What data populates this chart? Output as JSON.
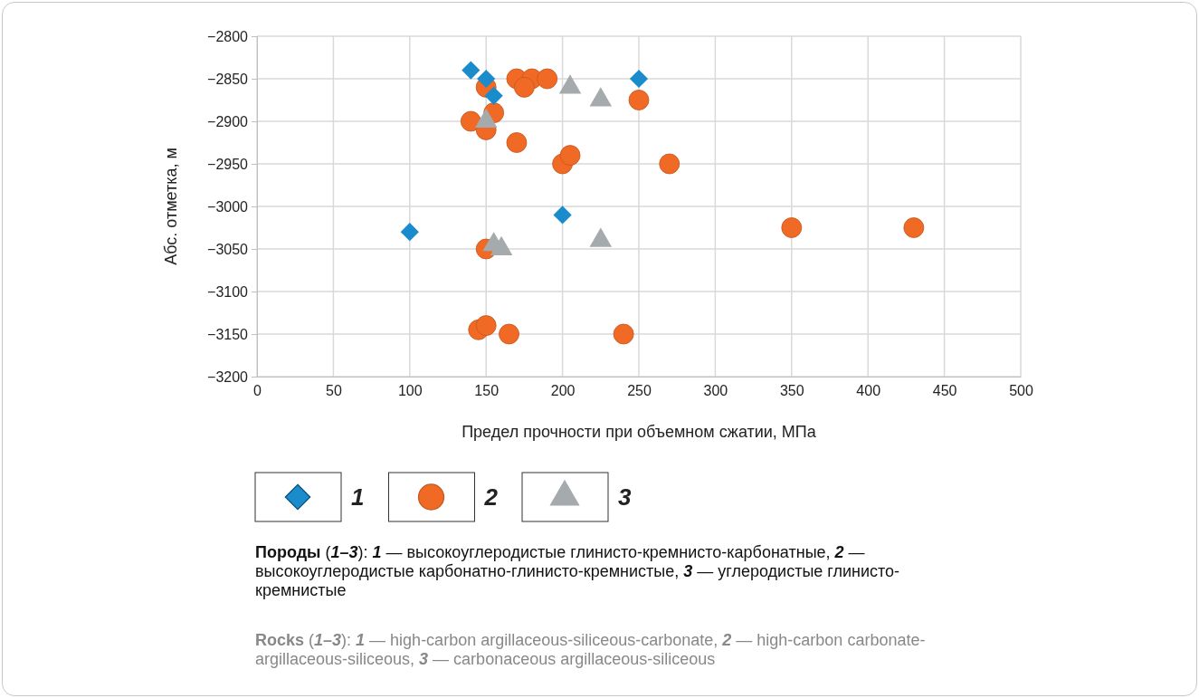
{
  "chart_data": {
    "type": "scatter",
    "xlabel": "Предел прочности при объемном сжатии, МПа",
    "ylabel": "Абс. отметка, м",
    "xlim": [
      0,
      500
    ],
    "xticks": [
      0,
      50,
      100,
      150,
      200,
      250,
      300,
      350,
      400,
      450,
      500
    ],
    "ylim": [
      -3200,
      -2800
    ],
    "yticks": [
      -3200,
      -3150,
      -3100,
      -3050,
      -3000,
      -2950,
      -2900,
      -2850,
      -2800
    ],
    "grid": true,
    "legend": "bottom",
    "series": [
      {
        "name": "1",
        "color": "#1a8ccb",
        "marker": "diamond",
        "x": [
          140,
          150,
          155,
          250,
          200,
          100
        ],
        "values": [
          -2840,
          -2850,
          -2870,
          -2850,
          -3010,
          -3030
        ]
      },
      {
        "name": "2",
        "color": "#f06a25",
        "marker": "circle",
        "x": [
          170,
          180,
          190,
          175,
          150,
          250,
          140,
          155,
          150,
          170,
          200,
          205,
          270,
          350,
          430,
          150,
          145,
          150,
          165,
          240
        ],
        "values": [
          -2850,
          -2850,
          -2850,
          -2860,
          -2860,
          -2875,
          -2900,
          -2890,
          -2910,
          -2925,
          -2950,
          -2940,
          -2950,
          -3025,
          -3025,
          -3050,
          -3145,
          -3140,
          -3150,
          -3150
        ]
      },
      {
        "name": "3",
        "color": "#a5aaad",
        "marker": "triangle",
        "x": [
          205,
          225,
          150,
          155,
          160,
          225
        ],
        "values": [
          -2860,
          -2875,
          -2900,
          -3045,
          -3050,
          -3040
        ]
      }
    ],
    "annotations": [
      "Породы (1–3): 1 — высокоуглеродистые глинисто-кремнисто-карбонатные, 2 — высокоуглеродистые карбонатно-глинисто-кремнистые, 3 — углеродистые глинисто-кремнистые",
      "Rocks (1–3): 1 — high-carbon argillaceous-siliceous-carbonate, 2 — high-carbon carbonate-argillaceous-siliceous, 3 — carbonaceous argillaceous-siliceous"
    ]
  }
}
